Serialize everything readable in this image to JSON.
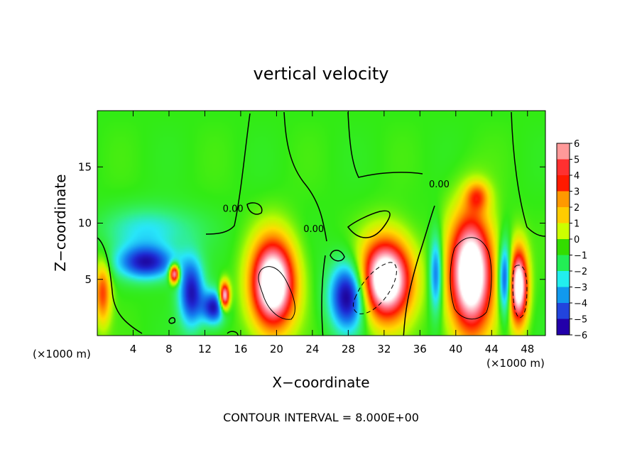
{
  "chart_data": {
    "type": "heatmap",
    "title": "vertical velocity",
    "xlabel": "X−coordinate",
    "ylabel": "Z−coordinate",
    "x_unit_left": "(×1000 m)",
    "x_unit_right": "(×1000 m)",
    "footer": "CONTOUR INTERVAL = 8.000E+00",
    "xlim": [
      0,
      50
    ],
    "ylim": [
      0,
      20
    ],
    "x_ticks": [
      4,
      8,
      12,
      16,
      20,
      24,
      28,
      32,
      36,
      40,
      44,
      48
    ],
    "y_ticks": [
      5,
      10,
      15
    ],
    "contour_labels": [
      {
        "text": "0.00",
        "x": 14.0,
        "y": 11.0
      },
      {
        "text": "0.00",
        "x": 23.0,
        "y": 9.2
      },
      {
        "text": "0.00",
        "x": 37.0,
        "y": 13.2
      }
    ],
    "colorbar": {
      "levels": [
        6,
        5,
        4,
        3,
        2,
        1,
        0,
        "−1",
        "−2",
        "−3",
        "−4",
        "−5",
        "−6"
      ],
      "colors": [
        "#ff9999",
        "#ff3030",
        "#ff1a00",
        "#ff9900",
        "#ffcc00",
        "#ccff00",
        "#33dd00",
        "#22ee55",
        "#22eeee",
        "#1199ee",
        "#2244dd",
        "#2200aa",
        "#8800aa"
      ]
    },
    "colors": {
      "background": "#33ee00",
      "updraft_core": "#ffffff",
      "updraft_edge": "#ff0000",
      "downdraft": "#1a1acc",
      "weak_downdraft": "#22ddff",
      "weak_updraft": "#ffaa00"
    },
    "features": [
      {
        "kind": "updraft",
        "x": 0.6,
        "y": 3.8,
        "rx": 1.0,
        "ry": 3.0,
        "strength": 4
      },
      {
        "kind": "updraft",
        "x": 8.6,
        "y": 5.5,
        "rx": 0.6,
        "ry": 0.9,
        "strength": 8
      },
      {
        "kind": "updraft",
        "x": 14.2,
        "y": 3.5,
        "rx": 0.6,
        "ry": 1.3,
        "strength": 8
      },
      {
        "kind": "updraft",
        "x": 19.6,
        "y": 4.6,
        "rx": 2.6,
        "ry": 4.2,
        "strength": 10
      },
      {
        "kind": "updraft",
        "x": 32.2,
        "y": 5.0,
        "rx": 3.0,
        "ry": 3.8,
        "strength": 10
      },
      {
        "kind": "updraft",
        "x": 41.7,
        "y": 5.5,
        "rx": 2.6,
        "ry": 5.6,
        "strength": 10
      },
      {
        "kind": "updraft",
        "x": 47.0,
        "y": 4.4,
        "rx": 1.1,
        "ry": 3.6,
        "strength": 9
      },
      {
        "kind": "updraft",
        "x": 42.4,
        "y": 12.4,
        "rx": 1.4,
        "ry": 1.4,
        "strength": 3
      },
      {
        "kind": "downdraft",
        "x": 5.5,
        "y": 6.5,
        "rx": 3.5,
        "ry": 1.6,
        "strength": 5
      },
      {
        "kind": "downdraft",
        "x": 10.5,
        "y": 3.8,
        "rx": 1.5,
        "ry": 3.2,
        "strength": 5
      },
      {
        "kind": "downdraft",
        "x": 13.0,
        "y": 2.5,
        "rx": 1.4,
        "ry": 1.6,
        "strength": 5
      },
      {
        "kind": "downdraft",
        "x": 28.0,
        "y": 3.5,
        "rx": 2.2,
        "ry": 3.2,
        "strength": 6
      },
      {
        "kind": "downdraft",
        "x": 37.8,
        "y": 5.5,
        "rx": 0.8,
        "ry": 3.8,
        "strength": 4
      },
      {
        "kind": "downdraft",
        "x": 45.5,
        "y": 5.0,
        "rx": 0.8,
        "ry": 3.5,
        "strength": 5
      },
      {
        "kind": "weak_downdraft",
        "x": 6.0,
        "y": 9.4,
        "rx": 5.5,
        "ry": 2.2,
        "strength": 2
      }
    ]
  }
}
